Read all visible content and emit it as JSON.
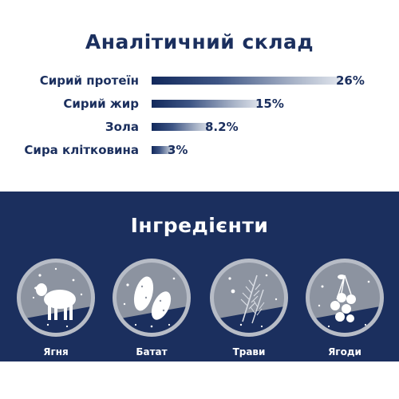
{
  "analytic": {
    "title": "Аналітичний склад",
    "rows": [
      {
        "label": "Сирий протеїн",
        "value": "26%",
        "percent": 26
      },
      {
        "label": "Сирий жир",
        "value": "15%",
        "percent": 15
      },
      {
        "label": "Зола",
        "value": "8.2%",
        "percent": 8.2
      },
      {
        "label": "Сира клітковина",
        "value": "3%",
        "percent": 3
      }
    ]
  },
  "ingredients": {
    "title": "Інгредієнти",
    "items": [
      {
        "label": "Ягня",
        "icon": "lamb-icon"
      },
      {
        "label": "Батат",
        "icon": "sweet-potato-icon"
      },
      {
        "label": "Трави",
        "icon": "herbs-icon"
      },
      {
        "label": "Ягоди",
        "icon": "berries-icon"
      }
    ]
  },
  "colors": {
    "navy": "#1b2f5e",
    "white": "#ffffff"
  }
}
